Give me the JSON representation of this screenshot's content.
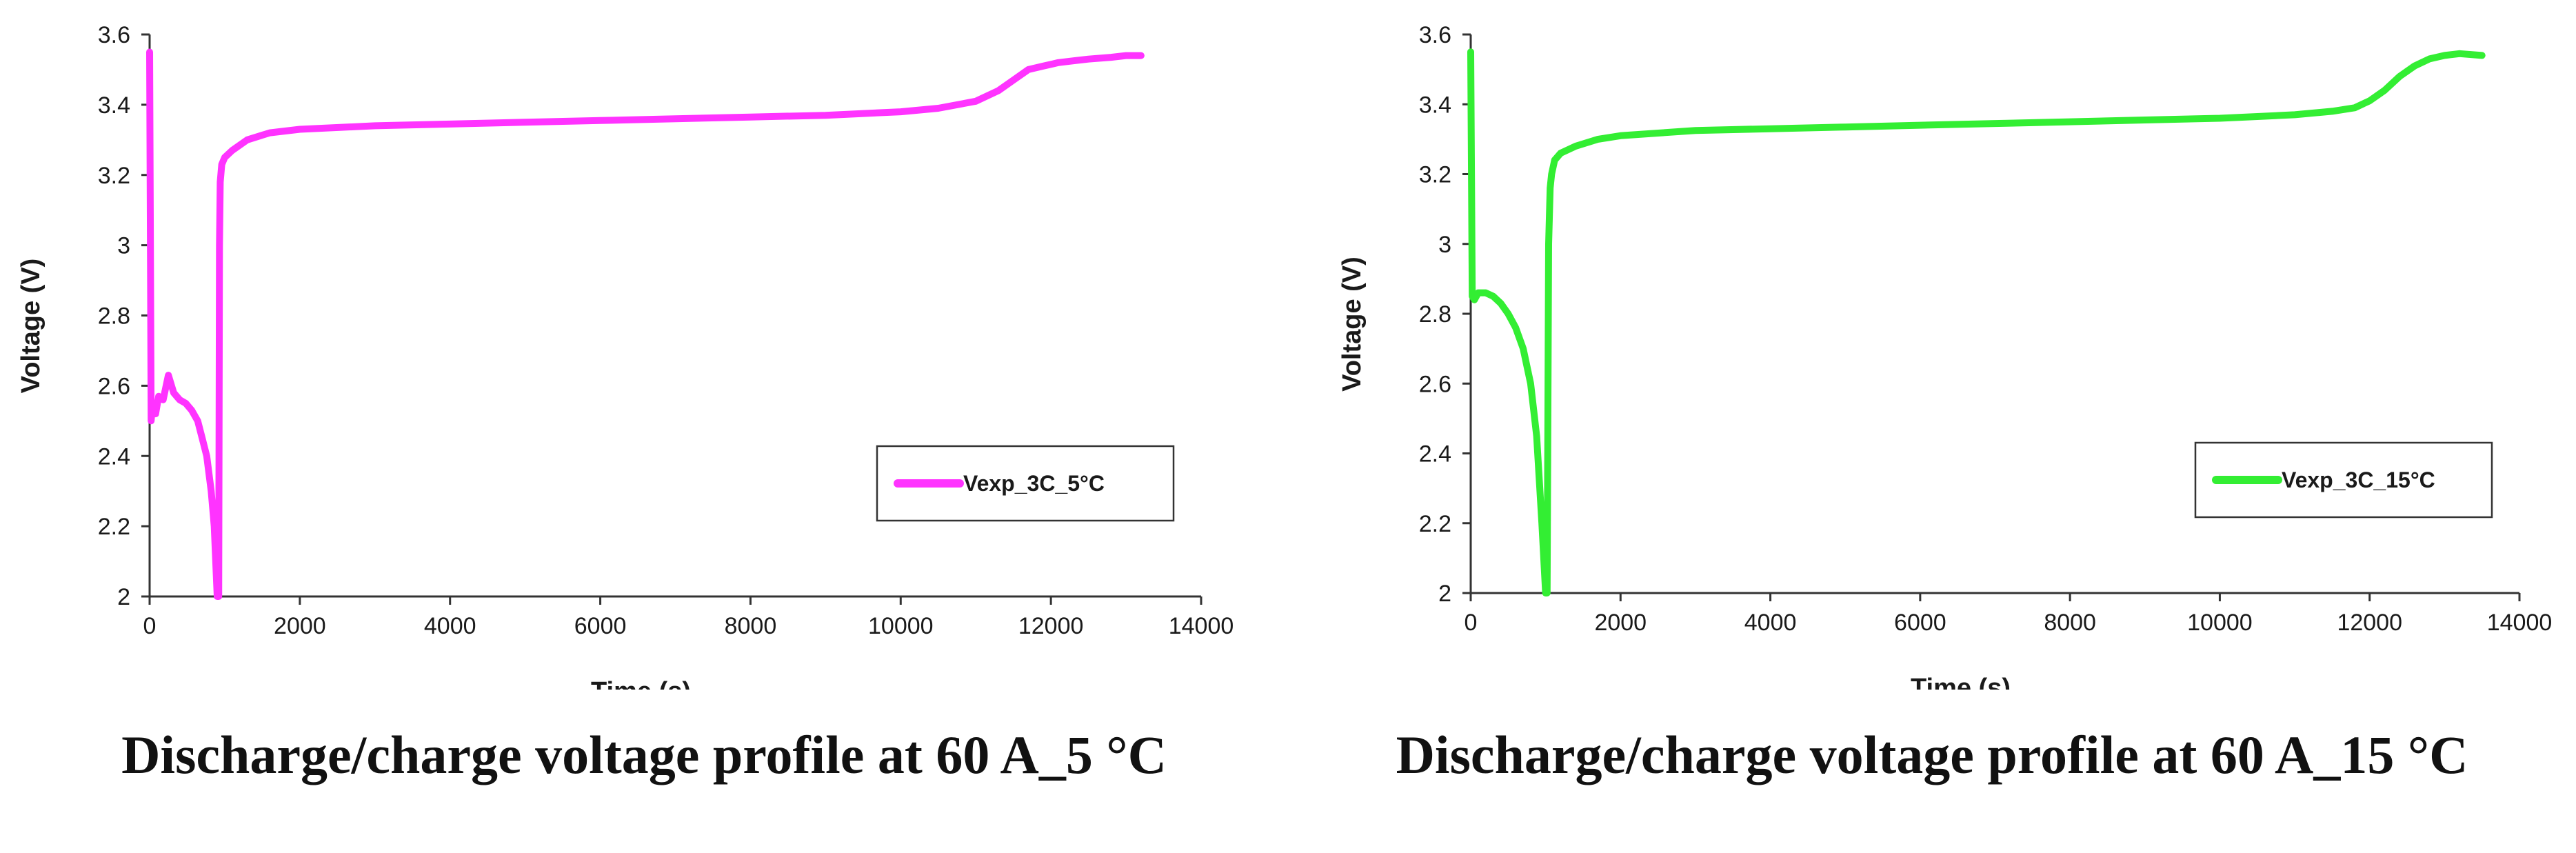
{
  "chart_data": [
    {
      "type": "line",
      "title": "Discharge/charge voltage profile at 60 A_5 °C",
      "xlabel": "Time (s)",
      "ylabel": "Voltage (V)",
      "xlim": [
        0,
        14000
      ],
      "ylim": [
        2,
        3.6
      ],
      "xticks": [
        0,
        2000,
        4000,
        6000,
        8000,
        10000,
        12000,
        14000
      ],
      "xtick_labels": [
        "0",
        "2000",
        "4000",
        "6000",
        "8000",
        "10000",
        "12000",
        "14000"
      ],
      "yticks": [
        2,
        2.2,
        2.4,
        2.6,
        2.8,
        3,
        3.2,
        3.4,
        3.6
      ],
      "ytick_labels": [
        "2",
        "2.2",
        "2.4",
        "2.6",
        "2.8",
        "3",
        "3.2",
        "3.4",
        "3.6"
      ],
      "legend_position": "lower-right",
      "color": "#ff33ff",
      "series": [
        {
          "name": "Vexp_3C_5°C",
          "x": [
            0,
            20,
            40,
            80,
            120,
            180,
            250,
            320,
            400,
            480,
            560,
            640,
            700,
            760,
            820,
            860,
            900,
            920,
            930,
            940,
            960,
            1000,
            1100,
            1300,
            1600,
            2000,
            3000,
            4000,
            5000,
            6000,
            7000,
            8000,
            9000,
            10000,
            10500,
            11000,
            11300,
            11500,
            11700,
            11900,
            12100,
            12300,
            12500,
            12800,
            13000,
            13200
          ],
          "y": [
            3.55,
            2.5,
            2.55,
            2.52,
            2.57,
            2.56,
            2.63,
            2.58,
            2.56,
            2.55,
            2.53,
            2.5,
            2.45,
            2.4,
            2.3,
            2.2,
            2.0,
            2.0,
            3.0,
            3.18,
            3.23,
            3.25,
            3.27,
            3.3,
            3.32,
            3.33,
            3.34,
            3.345,
            3.35,
            3.355,
            3.36,
            3.365,
            3.37,
            3.38,
            3.39,
            3.41,
            3.44,
            3.47,
            3.5,
            3.51,
            3.52,
            3.525,
            3.53,
            3.535,
            3.54,
            3.54
          ]
        }
      ]
    },
    {
      "type": "line",
      "title": "Discharge/charge voltage profile at 60 A_15 °C",
      "xlabel": "Time (s)",
      "ylabel": "Voltage (V)",
      "xlim": [
        0,
        14000
      ],
      "ylim": [
        2,
        3.6
      ],
      "xticks": [
        0,
        2000,
        4000,
        6000,
        8000,
        10000,
        12000,
        14000
      ],
      "xtick_labels": [
        "0",
        "2000",
        "4000",
        "6000",
        "8000",
        "10000",
        "12000",
        "14000"
      ],
      "yticks": [
        2,
        2.2,
        2.4,
        2.6,
        2.8,
        3,
        3.2,
        3.4,
        3.6
      ],
      "ytick_labels": [
        "2",
        "2.2",
        "2.4",
        "2.6",
        "2.8",
        "3",
        "3.2",
        "3.4",
        "3.6"
      ],
      "legend_position": "lower-right",
      "color": "#33ee33",
      "series": [
        {
          "name": "Vexp_3C_15°C",
          "x": [
            0,
            20,
            50,
            100,
            200,
            300,
            400,
            500,
            600,
            700,
            800,
            880,
            950,
            1000,
            1020,
            1040,
            1060,
            1080,
            1120,
            1200,
            1400,
            1700,
            2000,
            3000,
            4000,
            5000,
            6000,
            7000,
            8000,
            9000,
            10000,
            10500,
            11000,
            11500,
            11800,
            12000,
            12200,
            12400,
            12600,
            12800,
            13000,
            13200,
            13500
          ],
          "y": [
            3.55,
            2.85,
            2.84,
            2.86,
            2.86,
            2.85,
            2.83,
            2.8,
            2.76,
            2.7,
            2.6,
            2.45,
            2.2,
            2.0,
            2.0,
            3.0,
            3.16,
            3.2,
            3.24,
            3.26,
            3.28,
            3.3,
            3.31,
            3.325,
            3.33,
            3.335,
            3.34,
            3.345,
            3.35,
            3.355,
            3.36,
            3.365,
            3.37,
            3.38,
            3.39,
            3.41,
            3.44,
            3.48,
            3.51,
            3.53,
            3.54,
            3.545,
            3.54
          ]
        }
      ]
    }
  ]
}
